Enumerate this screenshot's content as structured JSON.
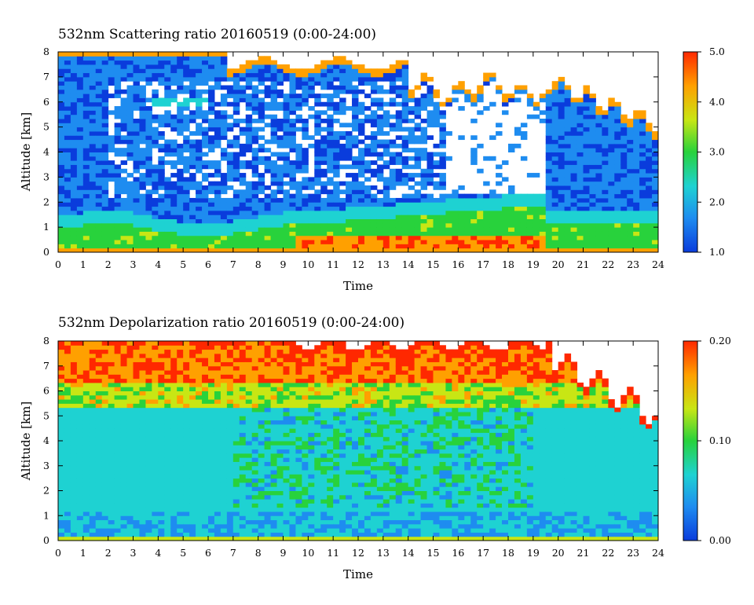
{
  "chart_data": [
    {
      "type": "heatmap",
      "title": "532nm Scattering ratio  20160519 (0:00-24:00)",
      "xlabel": "Time",
      "ylabel": "Altitude [km]",
      "xlim": [
        0,
        24
      ],
      "ylim": [
        0,
        8
      ],
      "x_ticks": [
        "0",
        "1",
        "2",
        "3",
        "4",
        "5",
        "6",
        "7",
        "8",
        "9",
        "10",
        "11",
        "12",
        "13",
        "14",
        "15",
        "16",
        "17",
        "18",
        "19",
        "20",
        "21",
        "22",
        "23",
        "24"
      ],
      "y_ticks": [
        "0",
        "1",
        "2",
        "3",
        "4",
        "5",
        "6",
        "7",
        "8"
      ],
      "colorbar": {
        "min": 1.0,
        "max": 5.0,
        "ticks": [
          "1.0",
          "2.0",
          "3.0",
          "4.0",
          "5.0"
        ],
        "tick_values": [
          1.0,
          2.0,
          3.0,
          4.0,
          5.0
        ]
      },
      "colormap": [
        "#0a3cdc",
        "#1e8cf0",
        "#1ed2d2",
        "#28d23c",
        "#c8e614",
        "#ffa000",
        "#ff2800"
      ]
    },
    {
      "type": "heatmap",
      "title": "532nm Depolarization ratio  20160519 (0:00-24:00)",
      "xlabel": "Time",
      "ylabel": "Altitude [km]",
      "xlim": [
        0,
        24
      ],
      "ylim": [
        0,
        8
      ],
      "x_ticks": [
        "0",
        "1",
        "2",
        "3",
        "4",
        "5",
        "6",
        "7",
        "8",
        "9",
        "10",
        "11",
        "12",
        "13",
        "14",
        "15",
        "16",
        "17",
        "18",
        "19",
        "20",
        "21",
        "22",
        "23",
        "24"
      ],
      "y_ticks": [
        "0",
        "1",
        "2",
        "3",
        "4",
        "5",
        "6",
        "7",
        "8"
      ],
      "colorbar": {
        "min": 0.0,
        "max": 0.2,
        "ticks": [
          "0.00",
          "0.10",
          "0.20"
        ],
        "tick_values": [
          0.0,
          0.1,
          0.2
        ]
      },
      "colormap": [
        "#0a3cdc",
        "#1e8cf0",
        "#1ed2d2",
        "#28d23c",
        "#c8e614",
        "#ffa000",
        "#ff2800"
      ]
    }
  ]
}
